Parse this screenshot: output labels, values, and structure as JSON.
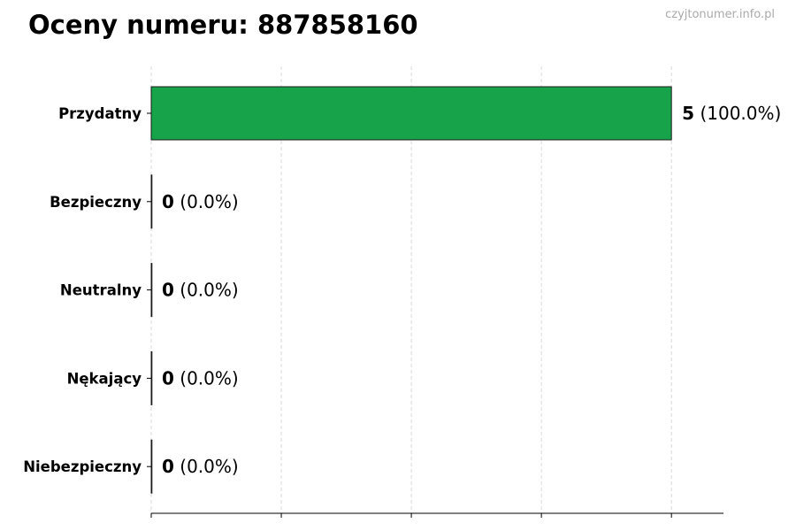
{
  "chart_data": {
    "type": "bar",
    "orientation": "horizontal",
    "title": "Oceny numeru: 887858160",
    "watermark": "czyjtonumer.info.pl",
    "categories": [
      "Przydatny",
      "Bezpieczny",
      "Neutralny",
      "Nękający",
      "Niebezpieczny"
    ],
    "values": [
      5,
      0,
      0,
      0,
      0
    ],
    "data_labels": [
      {
        "count": "5",
        "percent": "(100.0%)"
      },
      {
        "count": "0",
        "percent": "(0.0%)"
      },
      {
        "count": "0",
        "percent": "(0.0%)"
      },
      {
        "count": "0",
        "percent": "(0.0%)"
      },
      {
        "count": "0",
        "percent": "(0.0%)"
      }
    ],
    "xlim": [
      0,
      5.5
    ],
    "xticks": [
      0,
      1.25,
      2.5,
      3.75,
      5
    ],
    "xtick_labels_shown": false,
    "grid": "vertical dashed",
    "xlabel": "",
    "ylabel": "",
    "colors": {
      "bar": "#17a34a",
      "edge": "#1a1a1a",
      "grid": "#d0d0d0"
    }
  }
}
